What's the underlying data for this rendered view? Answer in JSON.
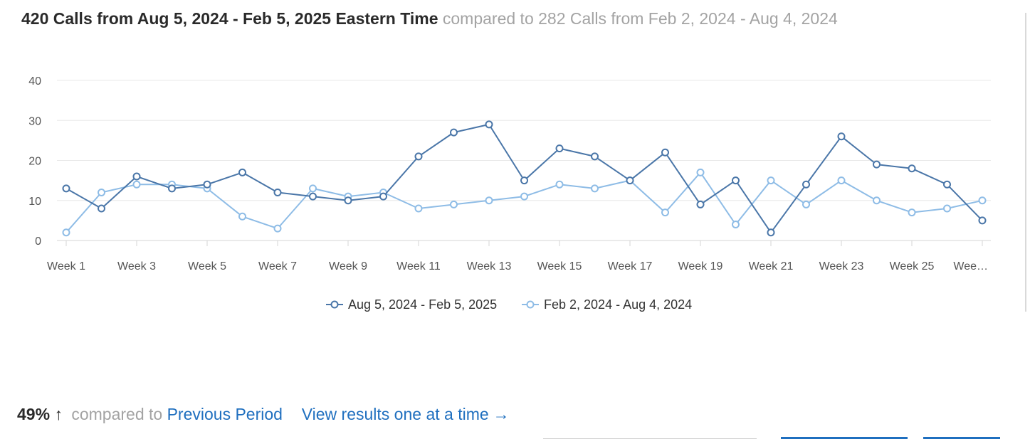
{
  "header": {
    "main": "420 Calls from Aug 5, 2024 - Feb 5, 2025 Eastern Time",
    "compare": "compared to 282 Calls from Feb 2, 2024 - Aug 4, 2024"
  },
  "colors": {
    "current": "#4a76a8",
    "previous": "#8ebce6",
    "grid": "#e8e8e8",
    "link": "#1f6fbf"
  },
  "chart_data": {
    "type": "line",
    "x_tick_labels": [
      "Week 1",
      "Week 3",
      "Week 5",
      "Week 7",
      "Week 9",
      "Week 11",
      "Week 13",
      "Week 15",
      "Week 17",
      "Week 19",
      "Week 21",
      "Week 23",
      "Week 25",
      "Wee…"
    ],
    "x_points": 27,
    "y_ticks": [
      "0",
      "10",
      "20",
      "30",
      "40"
    ],
    "ylim": [
      0,
      40
    ],
    "grid": true,
    "legend_placement": "bottom-center",
    "series": [
      {
        "name": "Aug 5, 2024 - Feb 5, 2025",
        "color": "#4a76a8",
        "values": [
          13,
          8,
          16,
          13,
          14,
          17,
          12,
          11,
          10,
          11,
          21,
          27,
          29,
          15,
          23,
          21,
          15,
          22,
          9,
          15,
          2,
          14,
          26,
          19,
          18,
          14,
          5
        ]
      },
      {
        "name": "Feb 2, 2024 - Aug 4, 2024",
        "color": "#8ebce6",
        "values": [
          2,
          12,
          14,
          14,
          13,
          6,
          3,
          13,
          11,
          12,
          8,
          9,
          10,
          11,
          14,
          13,
          15,
          7,
          17,
          4,
          15,
          9,
          15,
          10,
          7,
          8,
          10
        ]
      }
    ]
  },
  "footer": {
    "percent": "49%",
    "arrow": "↑",
    "compared_to": "compared to",
    "previous_period_link": "Previous Period",
    "view_results_link": "View results one at a time",
    "link_arrow": "→"
  }
}
